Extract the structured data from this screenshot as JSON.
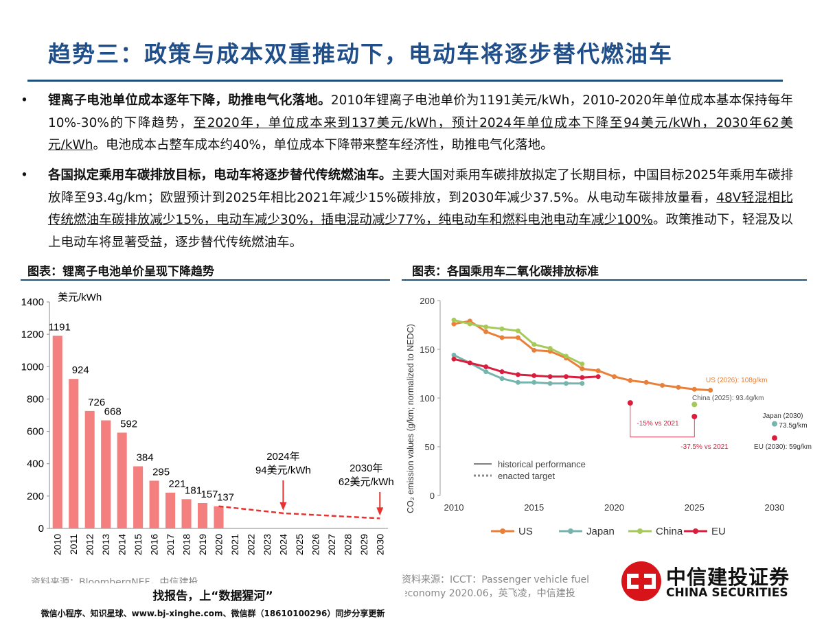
{
  "header": {
    "title": "趋势三：政策与成本双重推动下，电动车将逐步替代燃油车"
  },
  "bullets": [
    {
      "marker": "•",
      "segments": [
        {
          "style": "bold",
          "text": "锂离子电池单位成本逐年下降，助推电气化落地。"
        },
        {
          "style": "normal",
          "text": "2010年锂离子电池单价为1191美元/kWh，2010-2020年单位成本基本保持每年10%-30%的下降趋势，"
        },
        {
          "style": "underline",
          "text": "至2020年，单位成本来到137美元/kWh，预计2024年单位成本下降至94美元/kWh，2030年62美元/kWh"
        },
        {
          "style": "normal",
          "text": "。电池成本占整车成本约40%，单位成本下降带来整车经济性，助推电气化落地。"
        }
      ]
    },
    {
      "marker": "•",
      "segments": [
        {
          "style": "bold",
          "text": "各国拟定乘用车碳排放目标，电动车将逐步替代传统燃油车。"
        },
        {
          "style": "normal",
          "text": "主要大国对乘用车碳排放拟定了长期目标，中国目标2025年乘用车碳排放降至93.4g/km；欧盟预计到2025年相比2021年减少15%碳排放，到2030年减少37.5%。从电动车碳排放量看，"
        },
        {
          "style": "underline",
          "text": "48V轻混相比传统燃油车碳排放减少15%，电动车减少30%，插电混动减少77%，纯电动车和燃料电池电动车减少100%"
        },
        {
          "style": "normal",
          "text": "。政策推动下，轻混及以上电动车将显著受益，逐步替代传统燃油车。"
        }
      ]
    }
  ],
  "chart_data": [
    {
      "type": "bar",
      "title": "图表：锂离子电池单价呈现下降趋势",
      "y_unit": "美元/kWh",
      "categories": [
        "2010",
        "2011",
        "2012",
        "2013",
        "2014",
        "2015",
        "2016",
        "2017",
        "2018",
        "2019",
        "2020",
        "2021",
        "2022",
        "2023",
        "2024",
        "2025",
        "2026",
        "2027",
        "2028",
        "2029",
        "2030"
      ],
      "values": [
        1191,
        924,
        726,
        668,
        592,
        384,
        295,
        221,
        181,
        157,
        137,
        null,
        null,
        null,
        null,
        null,
        null,
        null,
        null,
        null,
        null
      ],
      "forecast": [
        null,
        null,
        null,
        null,
        null,
        null,
        null,
        null,
        null,
        null,
        137,
        null,
        null,
        null,
        94,
        null,
        null,
        null,
        null,
        null,
        62
      ],
      "color": "#f47f7f",
      "forecast_color": "#e8322f",
      "annotations": [
        "2024年",
        "94美元/kWh",
        "2030年",
        "62美元/kWh"
      ],
      "ylim": [
        0,
        1400
      ],
      "yticks": [
        0,
        200,
        400,
        600,
        800,
        1000,
        1200,
        1400
      ],
      "source": "资料来源：BloombergNEF，中信建投"
    },
    {
      "type": "line",
      "title": "图表：各国乘用车二氧化碳排放标准",
      "ylabel": "CO₂ emission values (g/km; normalized to NEDC)",
      "x": [
        2010,
        2011,
        2012,
        2013,
        2014,
        2015,
        2016,
        2017,
        2018,
        2019,
        2020,
        2021,
        2022,
        2023,
        2024,
        2025,
        2026,
        2027,
        2028,
        2029,
        2030
      ],
      "xlim": [
        2010,
        2030
      ],
      "xticks": [
        2010,
        2015,
        2020,
        2025,
        2030
      ],
      "ylim": [
        0,
        200
      ],
      "yticks": [
        0,
        50,
        100,
        150,
        200
      ],
      "series": [
        {
          "name": "US",
          "color": "#e8803a",
          "values": [
            176,
            179,
            168,
            162,
            162,
            149,
            148,
            141,
            130,
            128,
            122,
            118,
            116,
            113,
            111,
            109,
            108,
            null,
            null,
            null,
            null
          ],
          "target": [
            null,
            null,
            null,
            null,
            null,
            null,
            null,
            null,
            null,
            null,
            null,
            null,
            null,
            null,
            null,
            null,
            null,
            null,
            null,
            null,
            null
          ]
        },
        {
          "name": "Japan",
          "color": "#76b5ad",
          "values": [
            144,
            136,
            127,
            120,
            116,
            116,
            115,
            115,
            115,
            null,
            null,
            null,
            null,
            null,
            null,
            null,
            null,
            null,
            null,
            null,
            null
          ],
          "target": [
            null,
            null,
            null,
            null,
            null,
            null,
            null,
            null,
            115,
            null,
            null,
            null,
            null,
            null,
            null,
            null,
            null,
            null,
            null,
            null,
            73.5
          ]
        },
        {
          "name": "China",
          "color": "#a6c95a",
          "values": [
            180,
            176,
            173,
            171,
            169,
            155,
            151,
            143,
            135,
            null,
            null,
            null,
            null,
            null,
            null,
            null,
            null,
            null,
            null,
            null,
            null
          ],
          "target": [
            null,
            null,
            null,
            null,
            null,
            null,
            null,
            null,
            135,
            null,
            118,
            null,
            null,
            null,
            null,
            93.4,
            null,
            null,
            null,
            null,
            null
          ]
        },
        {
          "name": "EU",
          "color": "#d81e3c",
          "values": [
            140,
            136,
            132,
            127,
            124,
            123,
            122,
            122,
            121,
            122,
            null,
            null,
            null,
            null,
            null,
            null,
            null,
            null,
            null,
            null,
            null
          ],
          "target": [
            null,
            null,
            null,
            null,
            null,
            null,
            null,
            null,
            null,
            122,
            null,
            95,
            null,
            null,
            null,
            81,
            null,
            null,
            null,
            null,
            59
          ]
        }
      ],
      "annotations": [
        "US (2026): 108g/km",
        "China (2025): 93.4g/km",
        "Japan (2030)",
        "73.5g/km",
        "-15% vs 2021",
        "-37.5% vs 2021",
        "EU (2030): 59g/km"
      ],
      "style_legend": [
        "historical performance",
        "enacted target"
      ],
      "legend": "bottom",
      "source": "资料来源：ICCT：Passenger vehicle fuel economy 2020.06，英飞凌，中信建投"
    }
  ],
  "footer": {
    "banner": "找报告，上“数据猩河”",
    "banner_sub": "微信小程序、知识星球、www.bj-xinghe.com、微信群（18610100296）同步分享更新",
    "logo_cn": "中信建投证券",
    "logo_en": "CHINA SECURITIES"
  }
}
